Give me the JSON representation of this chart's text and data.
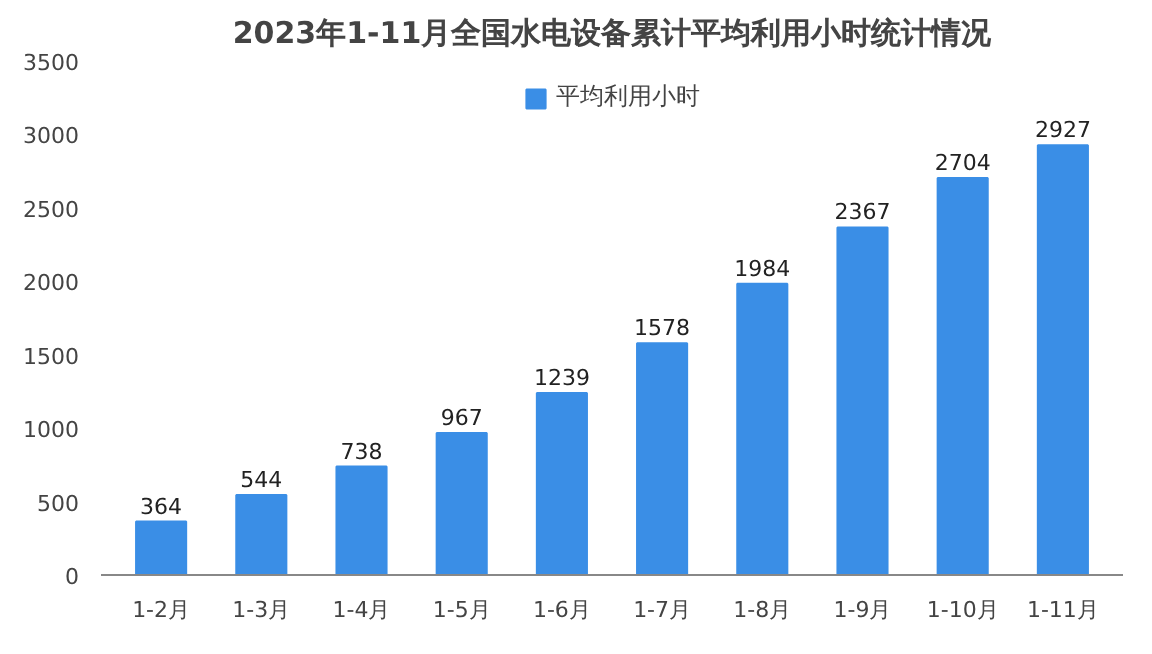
{
  "chart_data": {
    "type": "bar",
    "title": "2023年1-11月全国水电设备累计平均利用小时统计情况",
    "categories": [
      "1-2月",
      "1-3月",
      "1-4月",
      "1-5月",
      "1-6月",
      "1-7月",
      "1-8月",
      "1-9月",
      "1-10月",
      "1-11月"
    ],
    "series": [
      {
        "name": "平均利用小时",
        "color": "#3a8ee6",
        "values": [
          364,
          544,
          738,
          967,
          1239,
          1578,
          1984,
          2367,
          2704,
          2927
        ]
      }
    ],
    "ylim": [
      0,
      3500
    ],
    "yticks": [
      0,
      500,
      1000,
      1500,
      2000,
      2500,
      3000,
      3500
    ],
    "data_labels": true,
    "grid": false,
    "legend": "top"
  }
}
